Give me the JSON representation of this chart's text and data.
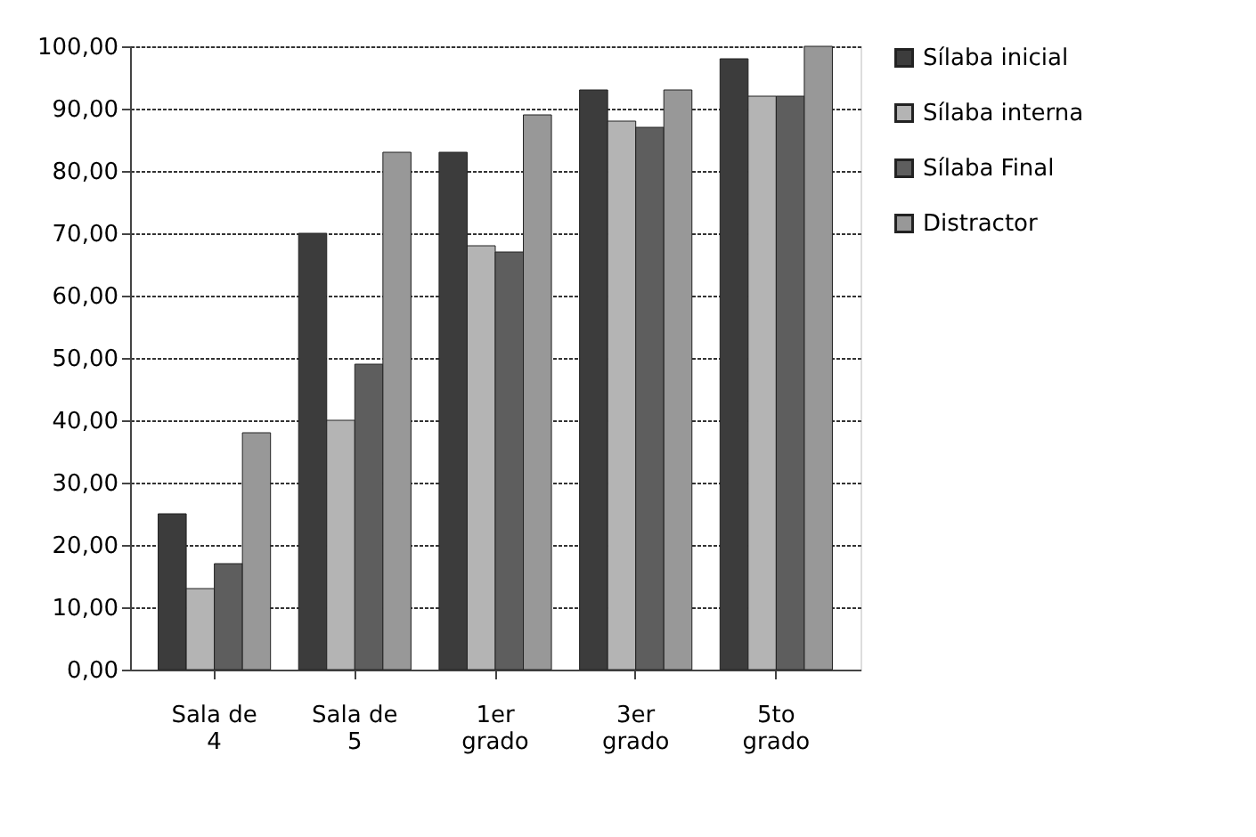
{
  "chart_data": {
    "type": "bar",
    "categories": [
      "Sala de 4",
      "Sala de 5",
      "1er grado",
      "3er grado",
      "5to grado"
    ],
    "series": [
      {
        "name": "Sílaba inicial",
        "color": "#3c3c3c",
        "values": [
          25,
          70,
          83,
          93,
          98
        ]
      },
      {
        "name": "Sílaba interna",
        "color": "#b4b4b4",
        "values": [
          13,
          40,
          68,
          88,
          92
        ]
      },
      {
        "name": "Sílaba Final",
        "color": "#5e5e5e",
        "values": [
          17,
          49,
          67,
          87,
          92
        ]
      },
      {
        "name": "Distractor",
        "color": "#989898",
        "values": [
          38,
          83,
          89,
          93,
          100
        ]
      }
    ],
    "ylim": [
      0,
      100
    ],
    "yticks": [
      {
        "value": 0,
        "label": "0,00"
      },
      {
        "value": 10,
        "label": "10,00"
      },
      {
        "value": 20,
        "label": "20,00"
      },
      {
        "value": 30,
        "label": "30,00"
      },
      {
        "value": 40,
        "label": "40,00"
      },
      {
        "value": 50,
        "label": "50,00"
      },
      {
        "value": 60,
        "label": "60,00"
      },
      {
        "value": 70,
        "label": "70,00"
      },
      {
        "value": 80,
        "label": "80,00"
      },
      {
        "value": 90,
        "label": "90,00"
      },
      {
        "value": 100,
        "label": "100,00"
      }
    ],
    "grid": "y",
    "legend": "right"
  }
}
